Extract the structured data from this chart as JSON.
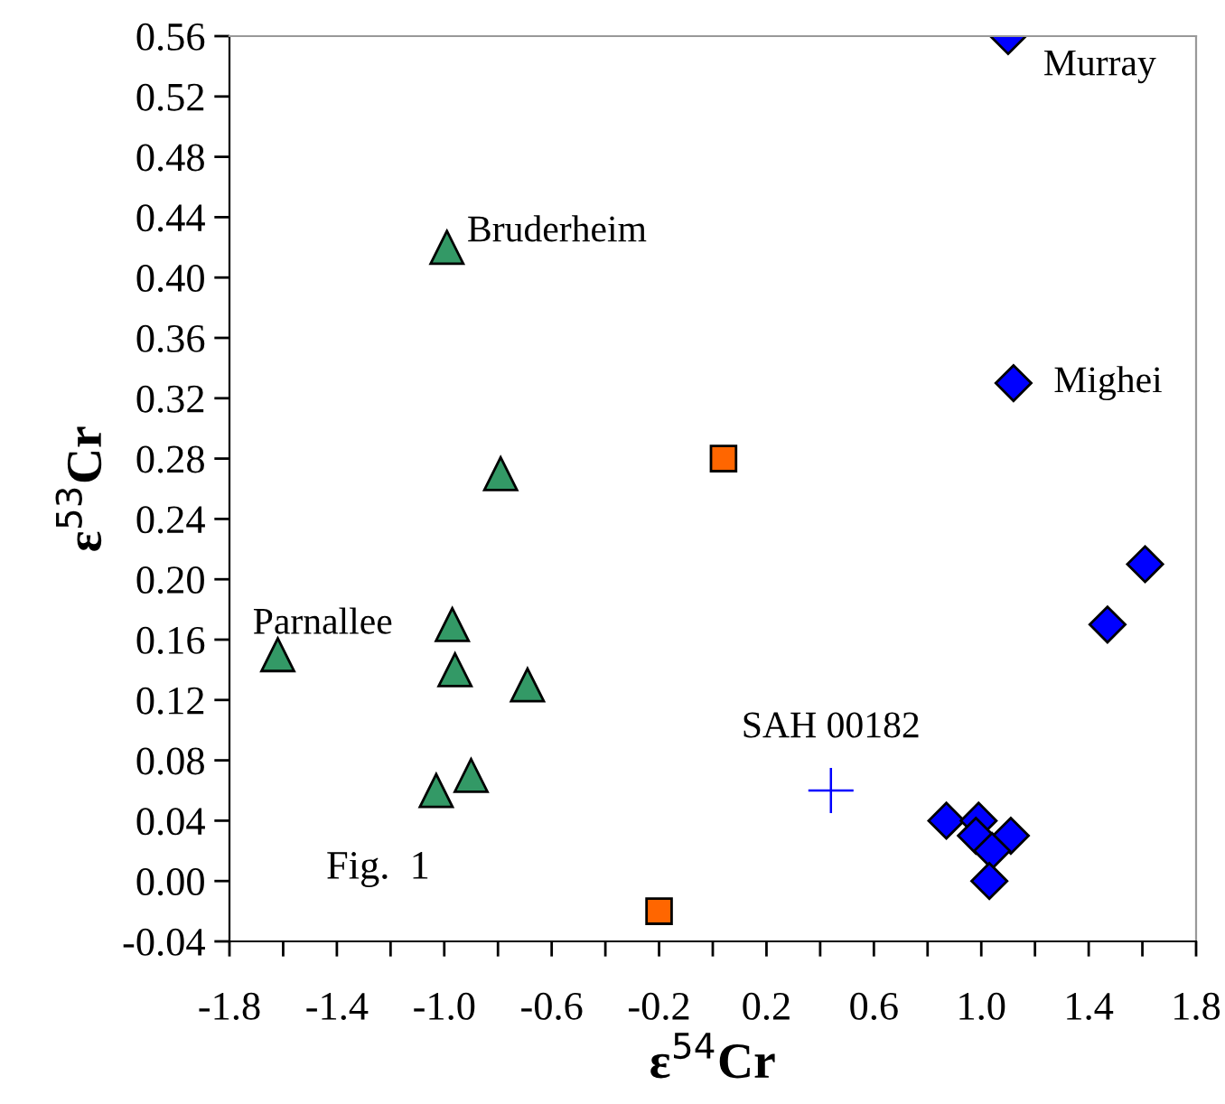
{
  "chart_data": {
    "type": "scatter",
    "xlabel": "ε$^{54}$Cr",
    "ylabel": "ε$^{53}$Cr",
    "xlim": [
      -1.8,
      1.8
    ],
    "ylim": [
      -0.04,
      0.56
    ],
    "xticks": [
      {
        "value": -1.8,
        "label": "-1.8"
      },
      {
        "value": -1.6,
        "label": null
      },
      {
        "value": -1.4,
        "label": "-1.4"
      },
      {
        "value": -1.2,
        "label": null
      },
      {
        "value": -1.0,
        "label": "-1.0"
      },
      {
        "value": -0.8,
        "label": null
      },
      {
        "value": -0.6,
        "label": "-0.6"
      },
      {
        "value": -0.4,
        "label": null
      },
      {
        "value": -0.2,
        "label": "-0.2"
      },
      {
        "value": 0.0,
        "label": null
      },
      {
        "value": 0.2,
        "label": "0.2"
      },
      {
        "value": 0.4,
        "label": null
      },
      {
        "value": 0.6,
        "label": "0.6"
      },
      {
        "value": 0.8,
        "label": null
      },
      {
        "value": 1.0,
        "label": "1.0"
      },
      {
        "value": 1.2,
        "label": null
      },
      {
        "value": 1.4,
        "label": "1.4"
      },
      {
        "value": 1.6,
        "label": null
      },
      {
        "value": 1.8,
        "label": "1.8"
      }
    ],
    "yticks": [
      {
        "value": -0.04,
        "label": "-0.04"
      },
      {
        "value": 0.0,
        "label": "0.00"
      },
      {
        "value": 0.04,
        "label": "0.04"
      },
      {
        "value": 0.08,
        "label": "0.08"
      },
      {
        "value": 0.12,
        "label": "0.12"
      },
      {
        "value": 0.16,
        "label": "0.16"
      },
      {
        "value": 0.2,
        "label": "0.20"
      },
      {
        "value": 0.24,
        "label": "0.24"
      },
      {
        "value": 0.28,
        "label": "0.28"
      },
      {
        "value": 0.32,
        "label": "0.32"
      },
      {
        "value": 0.36,
        "label": "0.36"
      },
      {
        "value": 0.4,
        "label": "0.40"
      },
      {
        "value": 0.44,
        "label": "0.44"
      },
      {
        "value": 0.48,
        "label": "0.48"
      },
      {
        "value": 0.52,
        "label": "0.52"
      },
      {
        "value": 0.56,
        "label": "0.56"
      }
    ],
    "grid": false,
    "legend": false,
    "series": [
      {
        "color": "#339966",
        "marker": "triangle",
        "x": [
          -0.99,
          -0.79,
          -1.62,
          -0.97,
          -0.96,
          -0.69,
          -0.9,
          -1.03
        ],
        "values": [
          0.42,
          0.27,
          0.15,
          0.17,
          0.14,
          0.13,
          0.07,
          0.06
        ]
      },
      {
        "color": "#ff6600",
        "marker": "square",
        "x": [
          0.04,
          -0.2
        ],
        "values": [
          0.28,
          -0.02
        ]
      },
      {
        "color": "#0000ff",
        "marker": "diamond",
        "x": [
          1.1,
          1.12,
          1.61,
          1.47,
          0.87,
          0.99,
          0.98,
          1.11,
          1.04,
          1.03
        ],
        "values": [
          0.56,
          0.33,
          0.21,
          0.17,
          0.04,
          0.04,
          0.03,
          0.03,
          0.02,
          0.0
        ]
      },
      {
        "color": "#0000ff",
        "marker": "cross",
        "x": [
          0.44
        ],
        "values": [
          0.06
        ]
      }
    ],
    "annotations": [
      {
        "text": "Murray",
        "x": 1.1,
        "y": 0.56
      },
      {
        "text": "Mighei",
        "x": 1.12,
        "y": 0.33
      },
      {
        "text": "Bruderheim",
        "x": -0.99,
        "y": 0.42
      },
      {
        "text": "Parnallee",
        "x": -1.62,
        "y": 0.15
      },
      {
        "text": "SAH 00182",
        "x": 0.44,
        "y": 0.06
      },
      "Fig.  1"
    ]
  }
}
